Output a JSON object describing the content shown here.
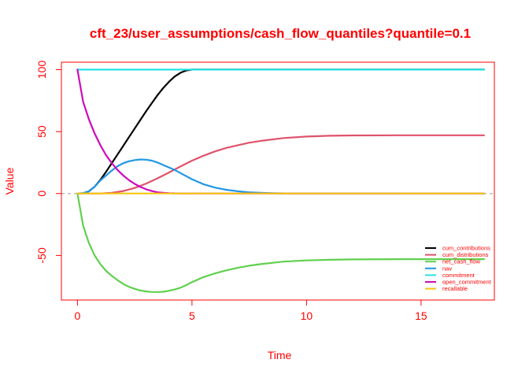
{
  "chart_data": {
    "type": "line",
    "title": "cft_23/user_assumptions/cash_flow_quantiles?quantile=0.1",
    "xlabel": "Time",
    "ylabel": "Value",
    "xlim": [
      -0.7,
      18.2
    ],
    "ylim": [
      -86,
      106
    ],
    "xticks": [
      0,
      5,
      10,
      15
    ],
    "yticks": [
      -50,
      0,
      50,
      100
    ],
    "reference_line": {
      "y": 0,
      "color": "#b0b0b0",
      "style": "dashed"
    },
    "grid": false,
    "legend_position": "bottom-right",
    "accent_color": "#ff0000",
    "series": [
      {
        "name": "cum_contributions",
        "color": "#000000",
        "x": [
          0,
          0.25,
          0.5,
          0.75,
          1,
          1.25,
          1.5,
          1.75,
          2,
          2.25,
          2.5,
          2.75,
          3,
          3.25,
          3.5,
          3.75,
          4,
          4.25,
          4.5,
          4.75,
          5,
          17.75
        ],
        "y": [
          0,
          0.3,
          1.8,
          5.5,
          11,
          17.5,
          24.5,
          31.5,
          38.5,
          45.5,
          52.5,
          59.5,
          66.5,
          73,
          79.5,
          85.3,
          90.3,
          94.5,
          97.5,
          99.3,
          100,
          100
        ]
      },
      {
        "name": "cum_distributions",
        "color": "#df536b",
        "x": [
          0,
          1,
          1.5,
          2,
          2.5,
          3,
          3.5,
          4,
          4.5,
          5,
          5.5,
          6,
          6.5,
          7,
          7.5,
          8,
          9,
          10,
          11,
          12,
          14,
          17.75
        ],
        "y": [
          0,
          0,
          0.6,
          2,
          4.5,
          8,
          12.3,
          17,
          21.8,
          26.5,
          30.5,
          34,
          36.8,
          39,
          41,
          42.5,
          44.8,
          46,
          46.6,
          46.9,
          47,
          47
        ]
      },
      {
        "name": "net_cash_flow",
        "color": "#61d04f",
        "x": [
          0,
          0.25,
          0.5,
          0.75,
          1,
          1.25,
          1.5,
          1.75,
          2,
          2.25,
          2.5,
          2.75,
          3,
          3.25,
          3.5,
          3.75,
          4,
          4.25,
          4.5,
          4.75,
          5,
          5.5,
          6,
          6.5,
          7,
          7.5,
          8,
          9,
          10,
          11,
          12,
          14,
          17.75
        ],
        "y": [
          0,
          -26,
          -40,
          -50,
          -57,
          -62.5,
          -66.5,
          -70,
          -73,
          -75.3,
          -77,
          -78.3,
          -79,
          -79.5,
          -79.5,
          -79.3,
          -78.5,
          -77.5,
          -76,
          -74,
          -71.5,
          -67.5,
          -64.5,
          -62,
          -60,
          -58.3,
          -57,
          -55,
          -54,
          -53.5,
          -53.2,
          -53,
          -53
        ]
      },
      {
        "name": "nav",
        "color": "#2297e6",
        "x": [
          0,
          0.25,
          0.5,
          0.75,
          1,
          1.25,
          1.5,
          1.75,
          2,
          2.25,
          2.5,
          2.75,
          3,
          3.25,
          3.5,
          3.75,
          4,
          4.25,
          4.5,
          4.75,
          5,
          5.5,
          6,
          6.5,
          7,
          7.5,
          8,
          8.5,
          9,
          10,
          11,
          12,
          14,
          17.75
        ],
        "y": [
          0,
          0.3,
          1.8,
          5.5,
          10.5,
          14.5,
          18.5,
          22,
          24.5,
          26,
          27,
          27.5,
          27.3,
          26.5,
          25,
          23,
          21,
          19,
          16.5,
          14,
          11.5,
          7.5,
          4.8,
          3,
          1.8,
          1,
          0.6,
          0.3,
          0.1,
          0,
          0,
          0,
          0,
          0
        ]
      },
      {
        "name": "commitment",
        "color": "#28e2e5",
        "x": [
          0,
          17.75
        ],
        "y": [
          100,
          100
        ]
      },
      {
        "name": "open_commitment",
        "color": "#cd0bbc",
        "x": [
          0,
          0.25,
          0.5,
          0.75,
          1,
          1.25,
          1.5,
          1.75,
          2,
          2.25,
          2.5,
          2.75,
          3,
          3.25,
          3.5,
          3.75,
          4,
          4.5,
          5,
          17.75
        ],
        "y": [
          100,
          74,
          60,
          48.5,
          39,
          31,
          24.5,
          19,
          14.5,
          10.8,
          7.8,
          5.3,
          3.4,
          2,
          1,
          0.5,
          0.2,
          0,
          0,
          0
        ]
      },
      {
        "name": "recallable",
        "color": "#f5c710",
        "x": [
          0,
          17.75
        ],
        "y": [
          0,
          0
        ]
      }
    ]
  }
}
